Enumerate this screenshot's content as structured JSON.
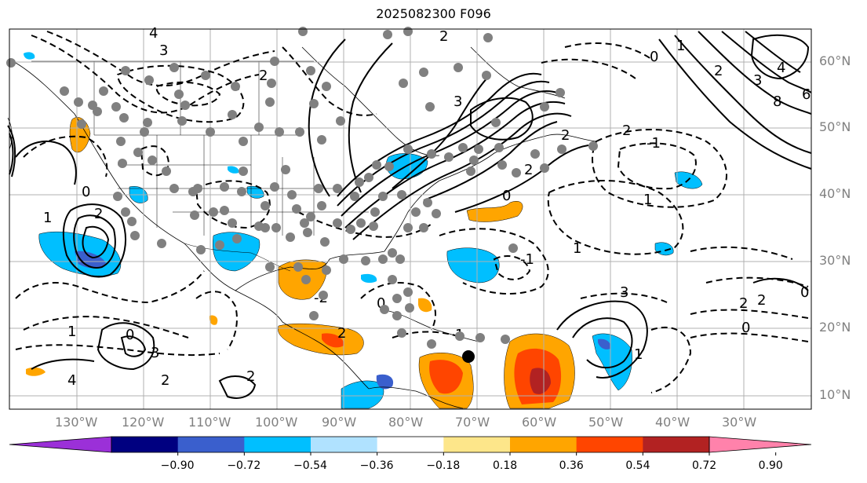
{
  "title": "2025082300 F096",
  "lon_labels": [
    "130°W",
    "120°W",
    "110°W",
    "100°W",
    "90°W",
    "80°W",
    "70°W",
    "60°W",
    "50°W",
    "40°W",
    "30°W"
  ],
  "lat_labels": [
    "60°N",
    "50°N",
    "40°N",
    "30°N",
    "20°N",
    "10°N"
  ],
  "colorbar": {
    "ticks": [
      "−0.90",
      "−0.72",
      "−0.54",
      "−0.36",
      "−0.18",
      "0.18",
      "0.36",
      "0.54",
      "0.72",
      "0.90"
    ],
    "colors": [
      "#9b30d8",
      "#000080",
      "#3a5fcd",
      "#00bfff",
      "#b0e2ff",
      "#ffffff",
      "#fde68a",
      "#ffa500",
      "#ff4500",
      "#b22222",
      "#ff82ab"
    ]
  },
  "contour_labels": [
    "4",
    "3",
    "2",
    "2",
    "0",
    "1",
    "2",
    "3",
    "4",
    "6",
    "8",
    "3",
    "2",
    "2",
    "0",
    "1",
    "-1",
    "2",
    "-1",
    "0",
    "1",
    "2",
    "-2",
    "0",
    "0",
    "1",
    "0",
    "3",
    "4",
    "2",
    "2",
    "3",
    "1",
    "2",
    "2",
    "0",
    "1",
    "2",
    "1"
  ],
  "storm_marker": {
    "lon": -69,
    "lat": 16
  }
}
